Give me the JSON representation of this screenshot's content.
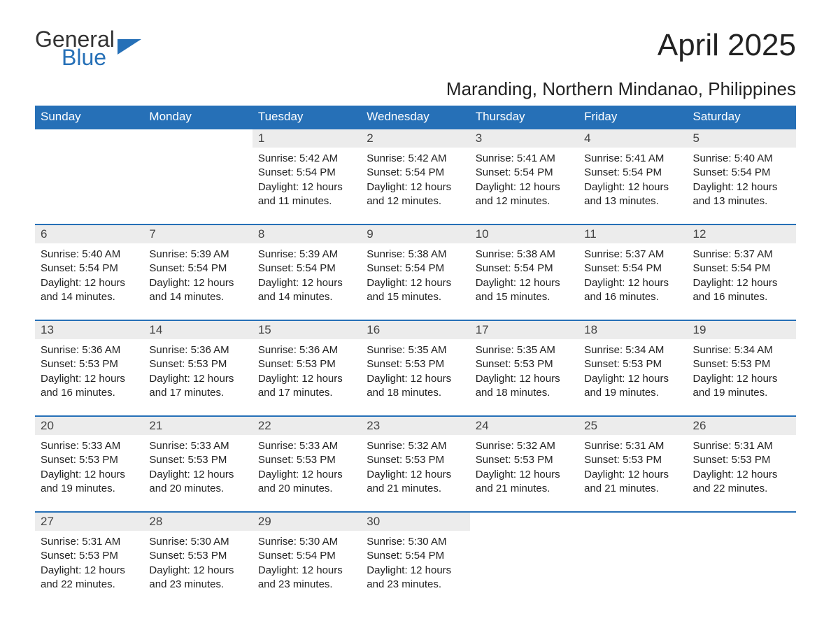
{
  "logo": {
    "general": "General",
    "blue": "Blue"
  },
  "title": "April 2025",
  "subtitle": "Maranding, Northern Mindanao, Philippines",
  "colors": {
    "header_bg": "#2670b7",
    "header_text": "#ffffff",
    "daynum_bg": "#ececec",
    "row_border": "#2670b7",
    "page_bg": "#ffffff",
    "logo_blue": "#2670b7",
    "body_text": "#222222"
  },
  "day_headers": [
    "Sunday",
    "Monday",
    "Tuesday",
    "Wednesday",
    "Thursday",
    "Friday",
    "Saturday"
  ],
  "weeks": [
    [
      null,
      null,
      {
        "n": "1",
        "sunrise": "5:42 AM",
        "sunset": "5:54 PM",
        "daylight": "12 hours and 11 minutes."
      },
      {
        "n": "2",
        "sunrise": "5:42 AM",
        "sunset": "5:54 PM",
        "daylight": "12 hours and 12 minutes."
      },
      {
        "n": "3",
        "sunrise": "5:41 AM",
        "sunset": "5:54 PM",
        "daylight": "12 hours and 12 minutes."
      },
      {
        "n": "4",
        "sunrise": "5:41 AM",
        "sunset": "5:54 PM",
        "daylight": "12 hours and 13 minutes."
      },
      {
        "n": "5",
        "sunrise": "5:40 AM",
        "sunset": "5:54 PM",
        "daylight": "12 hours and 13 minutes."
      }
    ],
    [
      {
        "n": "6",
        "sunrise": "5:40 AM",
        "sunset": "5:54 PM",
        "daylight": "12 hours and 14 minutes."
      },
      {
        "n": "7",
        "sunrise": "5:39 AM",
        "sunset": "5:54 PM",
        "daylight": "12 hours and 14 minutes."
      },
      {
        "n": "8",
        "sunrise": "5:39 AM",
        "sunset": "5:54 PM",
        "daylight": "12 hours and 14 minutes."
      },
      {
        "n": "9",
        "sunrise": "5:38 AM",
        "sunset": "5:54 PM",
        "daylight": "12 hours and 15 minutes."
      },
      {
        "n": "10",
        "sunrise": "5:38 AM",
        "sunset": "5:54 PM",
        "daylight": "12 hours and 15 minutes."
      },
      {
        "n": "11",
        "sunrise": "5:37 AM",
        "sunset": "5:54 PM",
        "daylight": "12 hours and 16 minutes."
      },
      {
        "n": "12",
        "sunrise": "5:37 AM",
        "sunset": "5:54 PM",
        "daylight": "12 hours and 16 minutes."
      }
    ],
    [
      {
        "n": "13",
        "sunrise": "5:36 AM",
        "sunset": "5:53 PM",
        "daylight": "12 hours and 16 minutes."
      },
      {
        "n": "14",
        "sunrise": "5:36 AM",
        "sunset": "5:53 PM",
        "daylight": "12 hours and 17 minutes."
      },
      {
        "n": "15",
        "sunrise": "5:36 AM",
        "sunset": "5:53 PM",
        "daylight": "12 hours and 17 minutes."
      },
      {
        "n": "16",
        "sunrise": "5:35 AM",
        "sunset": "5:53 PM",
        "daylight": "12 hours and 18 minutes."
      },
      {
        "n": "17",
        "sunrise": "5:35 AM",
        "sunset": "5:53 PM",
        "daylight": "12 hours and 18 minutes."
      },
      {
        "n": "18",
        "sunrise": "5:34 AM",
        "sunset": "5:53 PM",
        "daylight": "12 hours and 19 minutes."
      },
      {
        "n": "19",
        "sunrise": "5:34 AM",
        "sunset": "5:53 PM",
        "daylight": "12 hours and 19 minutes."
      }
    ],
    [
      {
        "n": "20",
        "sunrise": "5:33 AM",
        "sunset": "5:53 PM",
        "daylight": "12 hours and 19 minutes."
      },
      {
        "n": "21",
        "sunrise": "5:33 AM",
        "sunset": "5:53 PM",
        "daylight": "12 hours and 20 minutes."
      },
      {
        "n": "22",
        "sunrise": "5:33 AM",
        "sunset": "5:53 PM",
        "daylight": "12 hours and 20 minutes."
      },
      {
        "n": "23",
        "sunrise": "5:32 AM",
        "sunset": "5:53 PM",
        "daylight": "12 hours and 21 minutes."
      },
      {
        "n": "24",
        "sunrise": "5:32 AM",
        "sunset": "5:53 PM",
        "daylight": "12 hours and 21 minutes."
      },
      {
        "n": "25",
        "sunrise": "5:31 AM",
        "sunset": "5:53 PM",
        "daylight": "12 hours and 21 minutes."
      },
      {
        "n": "26",
        "sunrise": "5:31 AM",
        "sunset": "5:53 PM",
        "daylight": "12 hours and 22 minutes."
      }
    ],
    [
      {
        "n": "27",
        "sunrise": "5:31 AM",
        "sunset": "5:53 PM",
        "daylight": "12 hours and 22 minutes."
      },
      {
        "n": "28",
        "sunrise": "5:30 AM",
        "sunset": "5:53 PM",
        "daylight": "12 hours and 23 minutes."
      },
      {
        "n": "29",
        "sunrise": "5:30 AM",
        "sunset": "5:54 PM",
        "daylight": "12 hours and 23 minutes."
      },
      {
        "n": "30",
        "sunrise": "5:30 AM",
        "sunset": "5:54 PM",
        "daylight": "12 hours and 23 minutes."
      },
      null,
      null,
      null
    ]
  ],
  "labels": {
    "sunrise": "Sunrise: ",
    "sunset": "Sunset: ",
    "daylight": "Daylight: "
  }
}
